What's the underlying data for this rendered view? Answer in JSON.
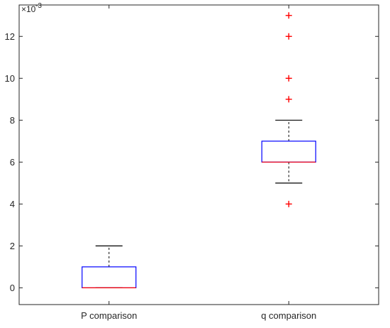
{
  "chart_data": {
    "type": "boxplot",
    "title": "",
    "xlabel": "",
    "ylabel": "",
    "y_multiplier_label": "×10",
    "y_multiplier_exponent": "-3",
    "categories": [
      "P comparison",
      "q comparison"
    ],
    "ylim": [
      -0.8,
      13.5
    ],
    "yticks": [
      0,
      2,
      4,
      6,
      8,
      10,
      12
    ],
    "ytick_labels": [
      "0",
      "2",
      "4",
      "6",
      "8",
      "10",
      "12"
    ],
    "unit_scale": 0.001,
    "grid": false,
    "boxes": [
      {
        "category": "P comparison",
        "q1": 0,
        "median": 0,
        "q3": 1,
        "whisker_low": 0,
        "whisker_high": 2,
        "outliers": []
      },
      {
        "category": "q comparison",
        "q1": 6,
        "median": 6,
        "q3": 7,
        "whisker_low": 5,
        "whisker_high": 8,
        "outliers": [
          4,
          9,
          10,
          12,
          13
        ]
      }
    ],
    "colors": {
      "box": "#0000ff",
      "median": "#ff0000",
      "whisker": "#000000",
      "outlier": "#ff0000",
      "axis": "#262626"
    }
  }
}
